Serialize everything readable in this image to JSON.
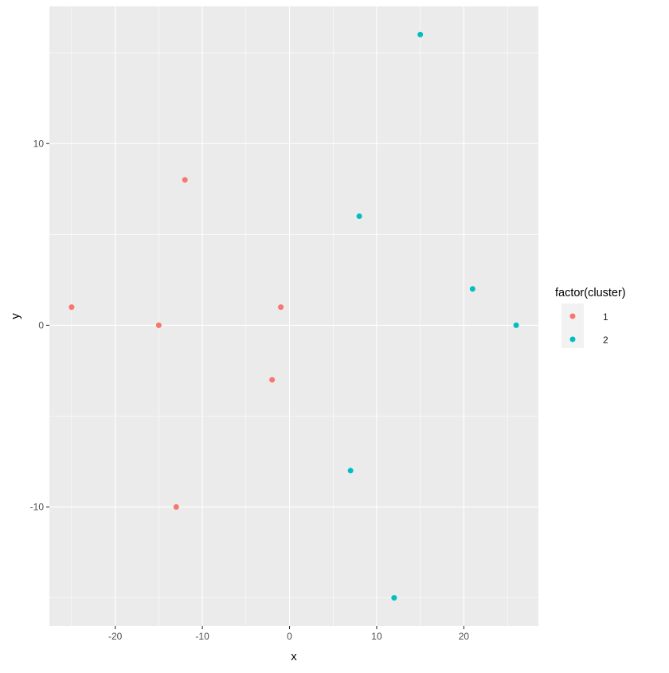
{
  "chart_data": {
    "type": "scatter",
    "xlabel": "x",
    "ylabel": "y",
    "xlim": [
      -27.55,
      28.55
    ],
    "ylim": [
      -16.55,
      17.55
    ],
    "x_ticks": [
      -20,
      -10,
      0,
      10,
      20
    ],
    "y_ticks": [
      -10,
      0,
      10
    ],
    "x_tick_labels": [
      "-20",
      "-10",
      "0",
      "10",
      "20"
    ],
    "y_tick_labels": [
      "-10",
      "0",
      "10"
    ],
    "grid": true,
    "legend": {
      "title": "factor(cluster)",
      "placement": "right",
      "entries": [
        "1",
        "2"
      ]
    },
    "series": [
      {
        "name": "1",
        "color": "#F8766D",
        "points": [
          [
            -25,
            1
          ],
          [
            -15,
            0
          ],
          [
            -12,
            8
          ],
          [
            -13,
            -10
          ],
          [
            -1,
            1
          ],
          [
            -2,
            -3
          ]
        ]
      },
      {
        "name": "2",
        "color": "#00BFC4",
        "points": [
          [
            15,
            16
          ],
          [
            8,
            6
          ],
          [
            21,
            2
          ],
          [
            26,
            0
          ],
          [
            7,
            -8
          ],
          [
            12,
            -15
          ]
        ]
      }
    ],
    "panel_background": "#EBEBEB",
    "grid_color": "#FFFFFF"
  }
}
